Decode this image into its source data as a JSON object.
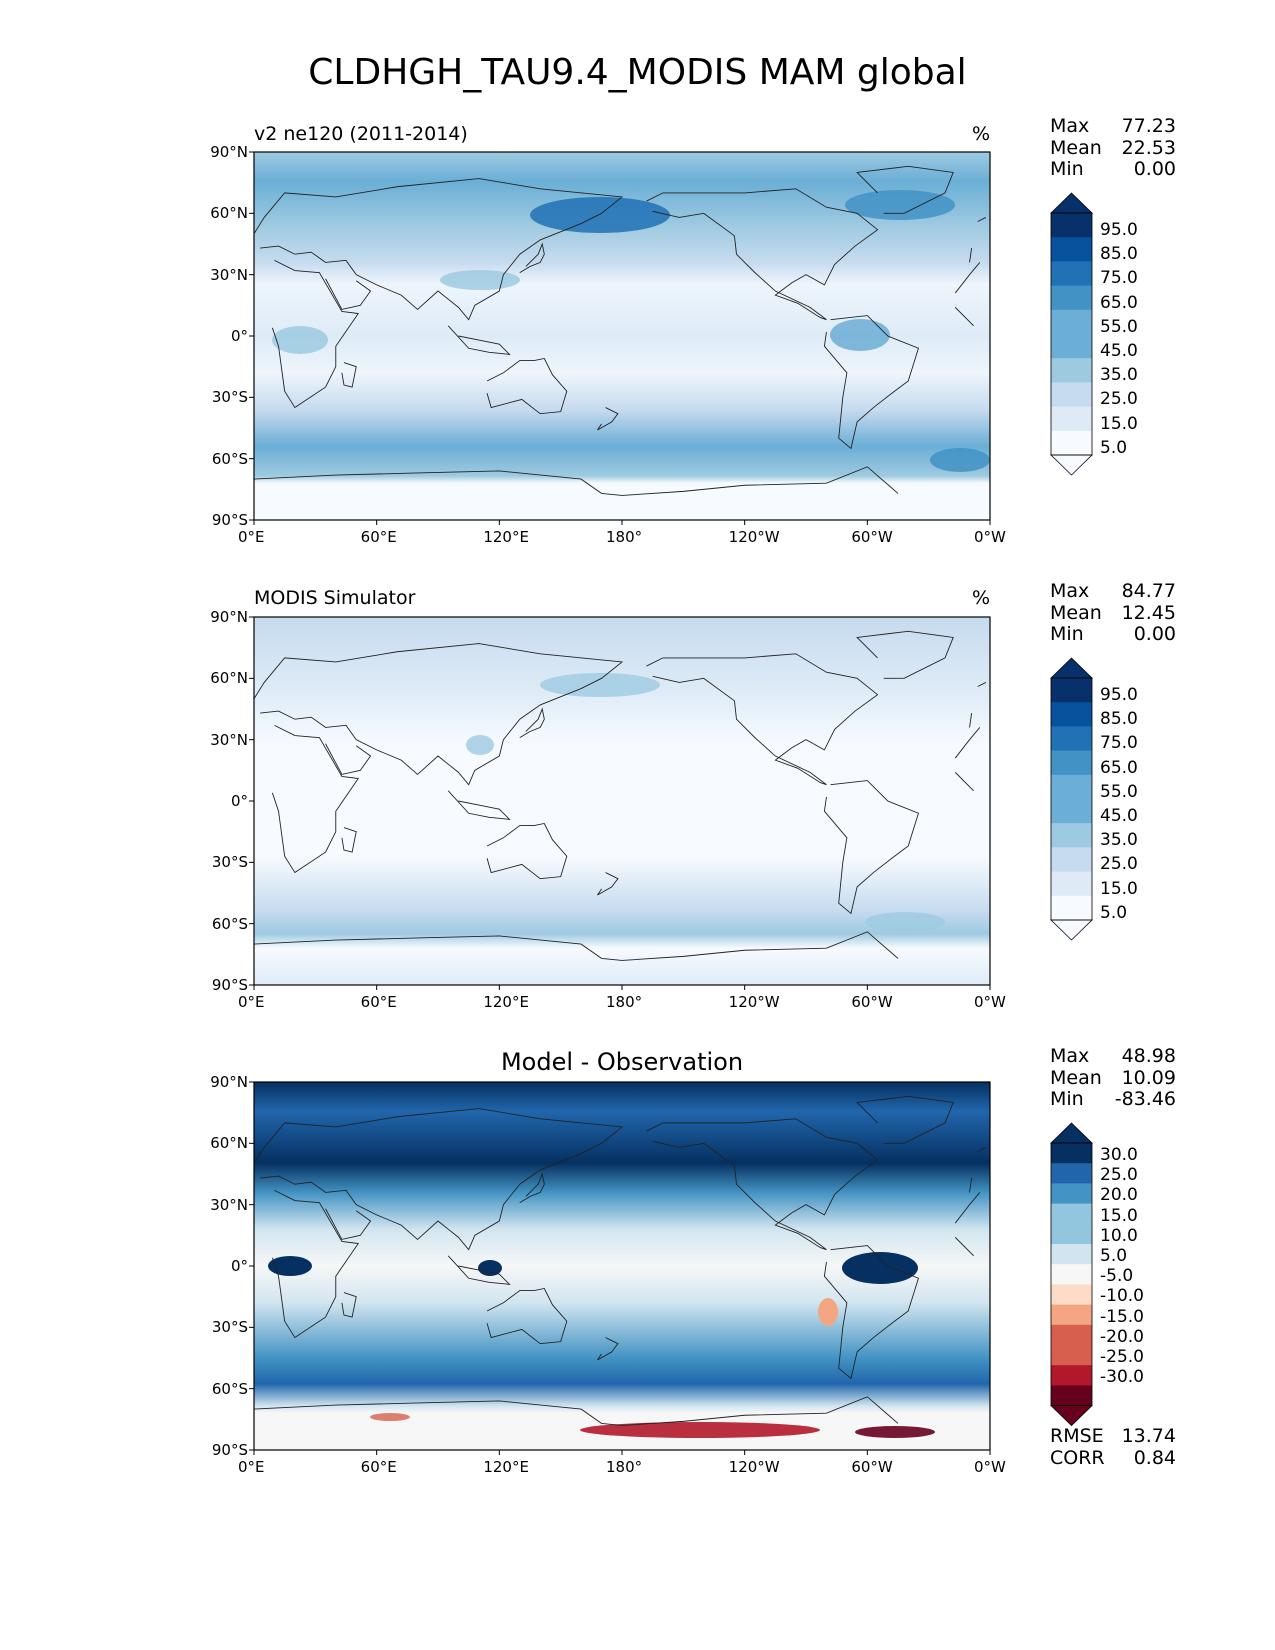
{
  "title": "CLDHGH_TAU9.4_MODIS MAM global",
  "colors": {
    "blues": [
      "#f7fbff",
      "#deebf7",
      "#c6dbef",
      "#9ecae1",
      "#6baed6",
      "#4292c6",
      "#2171b5",
      "#08519c",
      "#08306b"
    ],
    "diff": [
      "#67001f",
      "#b2182b",
      "#d6604d",
      "#f4a582",
      "#fddbc7",
      "#f7f7f7",
      "#d1e5f0",
      "#92c5de",
      "#4393c3",
      "#2166ac",
      "#053061"
    ],
    "coastline": "#222222"
  },
  "axes": {
    "lat_labels": [
      "90°N",
      "60°N",
      "30°N",
      "0°",
      "30°S",
      "60°S",
      "90°S"
    ],
    "lon_labels": [
      "0°E",
      "60°E",
      "120°E",
      "180°",
      "120°W",
      "60°W",
      "0°W"
    ]
  },
  "panels": [
    {
      "title_left": "v2 ne120 (2011-2014)",
      "title_center": "",
      "units": "%",
      "stats": [
        {
          "label": "Max",
          "value": "77.23"
        },
        {
          "label": "Mean",
          "value": "22.53"
        },
        {
          "label": "Min",
          "value": "0.00"
        }
      ],
      "colorbar_labels": [
        "95.0",
        "85.0",
        "75.0",
        "65.0",
        "55.0",
        "45.0",
        "35.0",
        "25.0",
        "15.0",
        "5.0"
      ]
    },
    {
      "title_left": "MODIS Simulator",
      "title_center": "",
      "units": "%",
      "stats": [
        {
          "label": "Max",
          "value": "84.77"
        },
        {
          "label": "Mean",
          "value": "12.45"
        },
        {
          "label": "Min",
          "value": "0.00"
        }
      ],
      "colorbar_labels": [
        "95.0",
        "85.0",
        "75.0",
        "65.0",
        "55.0",
        "45.0",
        "35.0",
        "25.0",
        "15.0",
        "5.0"
      ]
    },
    {
      "title_left": "",
      "title_center": "Model - Observation",
      "units": "",
      "stats": [
        {
          "label": "Max",
          "value": "48.98"
        },
        {
          "label": "Mean",
          "value": "10.09"
        },
        {
          "label": "Min",
          "value": "-83.46"
        }
      ],
      "colorbar_labels": [
        "30.0",
        "25.0",
        "20.0",
        "15.0",
        "10.0",
        "5.0",
        "-5.0",
        "-10.0",
        "-15.0",
        "-20.0",
        "-25.0",
        "-30.0"
      ],
      "metrics": [
        {
          "label": "RMSE",
          "value": "13.74"
        },
        {
          "label": "CORR",
          "value": "0.84"
        }
      ]
    }
  ]
}
